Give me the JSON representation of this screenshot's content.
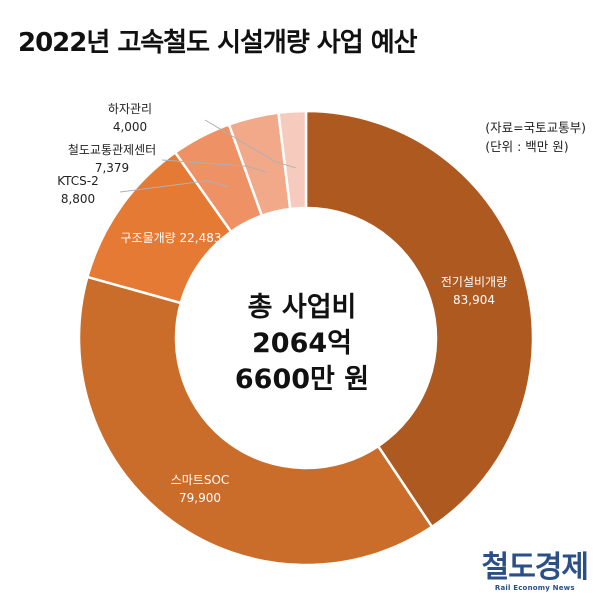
{
  "title": "2022년 고속철도 시설개량 사업 예산",
  "source": {
    "line1": "(자료=국토교통부)",
    "line2": "(단위 : 백만 원)"
  },
  "center": {
    "line1": "총 사업비",
    "line2": "2064억",
    "line3": "6600만 원"
  },
  "brand": {
    "name": "철도경제",
    "sub": "Rail Economy News"
  },
  "colors": {
    "전기설비개량": "#ad5920",
    "스마트SOC": "#cb6d2a",
    "구조물개량": "#e57a35",
    "KTCS-2": "#ee9164",
    "철도교통관제센터": "#f2a98a",
    "하자관리": "#f6cbbd",
    "background": "#ffffff",
    "brand": "#2b4f87"
  },
  "chart_data": {
    "type": "pie",
    "donut": true,
    "categories": [
      "전기설비개량",
      "스마트SOC",
      "구조물개량",
      "KTCS-2",
      "철도교통관제센터",
      "하자관리"
    ],
    "values": [
      83904,
      79900,
      22483,
      8800,
      7379,
      4000
    ],
    "value_labels": [
      "83,904",
      "79,900",
      "22,483",
      "8,800",
      "7,379",
      "4,000"
    ],
    "unit": "백만 원"
  }
}
